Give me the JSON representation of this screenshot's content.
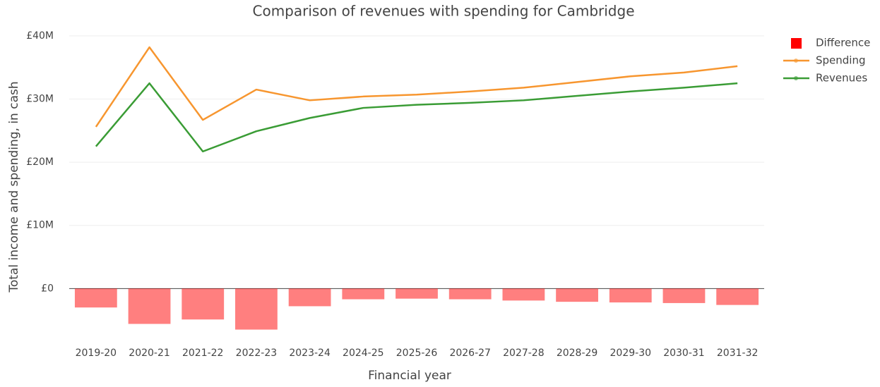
{
  "chart_data": {
    "type": "combo",
    "title": "Comparison of revenues with spending for Cambridge",
    "x_label": "Financial year",
    "y_label": "Total income and spending, in cash",
    "categories": [
      "2019-20",
      "2020-21",
      "2021-22",
      "2022-23",
      "2023-24",
      "2024-25",
      "2025-26",
      "2026-27",
      "2027-28",
      "2028-29",
      "2029-30",
      "2030-31",
      "2031-32"
    ],
    "series": [
      {
        "name": "Difference",
        "type": "bar",
        "color": "#ff0000",
        "opacity": 0.5,
        "values": [
          -3000000,
          -5600000,
          -4900000,
          -6500000,
          -2800000,
          -1700000,
          -1600000,
          -1700000,
          -1900000,
          -2100000,
          -2200000,
          -2300000,
          -2600000
        ]
      },
      {
        "name": "Spending",
        "type": "line",
        "color": "#f7962f",
        "values": [
          25600000,
          38200000,
          26700000,
          31500000,
          29800000,
          30400000,
          30700000,
          31200000,
          31800000,
          32700000,
          33600000,
          34200000,
          35200000
        ]
      },
      {
        "name": "Revenues",
        "type": "line",
        "color": "#3a9c35",
        "values": [
          22500000,
          32500000,
          21700000,
          24900000,
          27000000,
          28600000,
          29100000,
          29400000,
          29800000,
          30500000,
          31200000,
          31800000,
          32500000
        ]
      }
    ],
    "ylim": [
      -8000000,
      42000000
    ],
    "yticks": [
      {
        "value": 0,
        "label": "£0"
      },
      {
        "value": 10000000,
        "label": "£10M"
      },
      {
        "value": 20000000,
        "label": "£20M"
      },
      {
        "value": 30000000,
        "label": "£30M"
      },
      {
        "value": 40000000,
        "label": "£40M"
      }
    ],
    "grid": true,
    "legend": "top-right"
  }
}
